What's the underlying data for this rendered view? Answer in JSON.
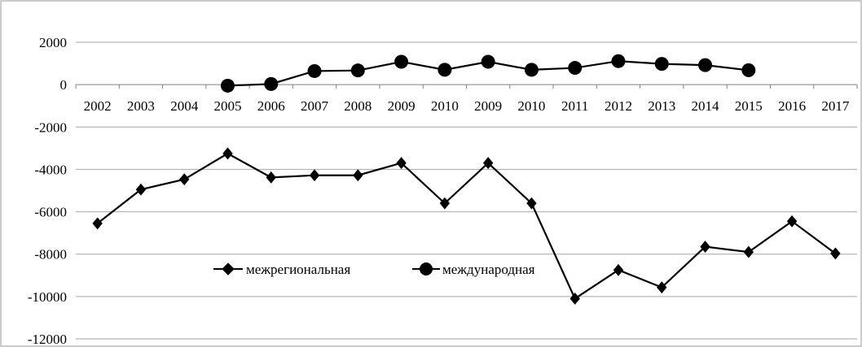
{
  "chart_data": {
    "type": "line",
    "categories": [
      "2002",
      "2003",
      "2004",
      "2005",
      "2006",
      "2007",
      "2008",
      "2009",
      "2010",
      "2009",
      "2010",
      "2011",
      "2012",
      "2013",
      "2014",
      "2015",
      "2016",
      "2017"
    ],
    "series": [
      {
        "name": "межрегиональная",
        "marker": "diamond",
        "color": "#000000",
        "values": [
          -6550,
          -4950,
          -4470,
          -3250,
          -4380,
          -4280,
          -4280,
          -3700,
          -5600,
          -3700,
          -5600,
          -10100,
          -8750,
          -9570,
          -7650,
          -7900,
          -6450,
          -7970
        ]
      },
      {
        "name": "международная",
        "marker": "circle",
        "color": "#000000",
        "values": [
          null,
          null,
          null,
          -50,
          30,
          640,
          670,
          1080,
          700,
          1080,
          700,
          790,
          1110,
          980,
          920,
          680,
          null,
          null
        ]
      }
    ],
    "y_ticks": [
      "2000",
      "0",
      "-2000",
      "-4000",
      "-6000",
      "-8000",
      "-10000",
      "-12000"
    ],
    "ylim": [
      -12000,
      2000
    ],
    "grid": true,
    "legend_position": "center-left, inside plot"
  }
}
